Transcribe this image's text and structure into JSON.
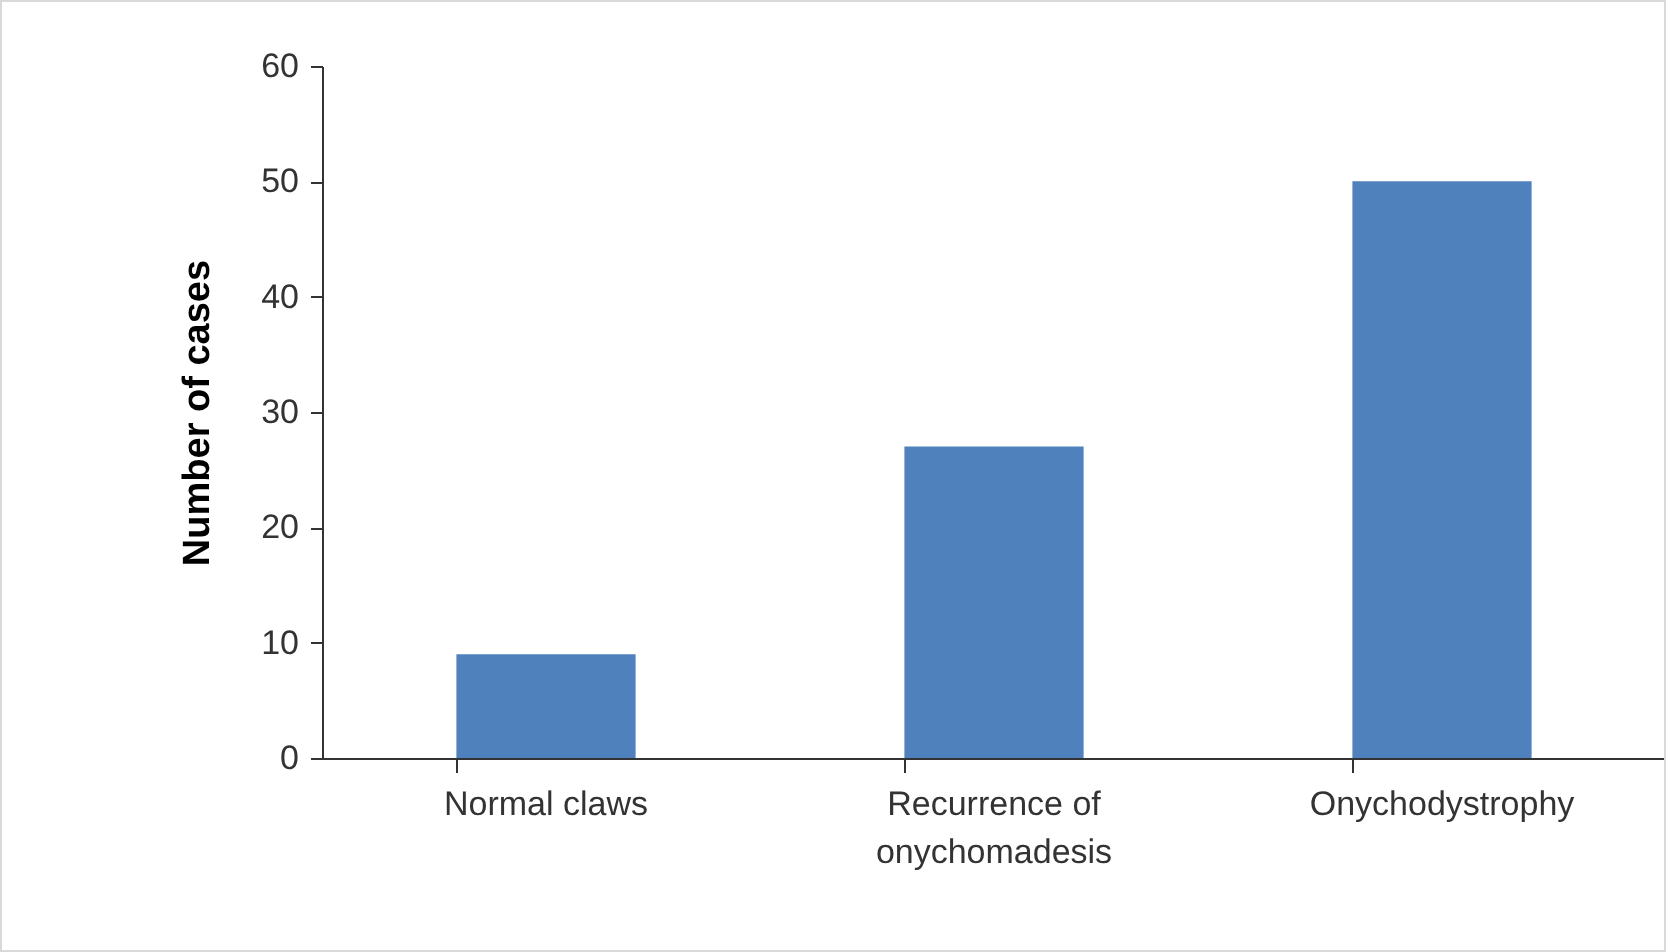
{
  "chart_data": {
    "type": "bar",
    "ylabel": "Number of cases",
    "categories": [
      "Normal claws",
      "Recurrence of onychomadesis",
      "Onychodystrophy"
    ],
    "values": [
      9,
      27,
      50
    ],
    "color": "#4f81bd",
    "ylim": [
      0,
      60
    ],
    "yticks": [
      0,
      10,
      20,
      30,
      40,
      50,
      60
    ],
    "grid": false
  }
}
